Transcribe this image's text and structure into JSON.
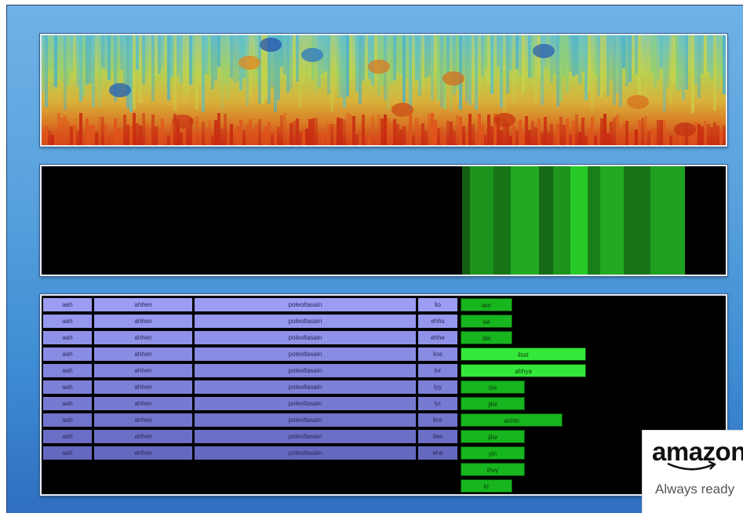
{
  "decoder": {
    "rows": [
      {
        "c1": "aah",
        "c2": "ahhen",
        "c3": "poleoltasain",
        "c4": "lio",
        "bar_label": "iwn",
        "bar_level": 0.41,
        "shade": "#9b9cf2"
      },
      {
        "c1": "aah",
        "c2": "ahhen",
        "c3": "poleoltasain",
        "c4": "ehhs",
        "bar_label": "iwi",
        "bar_level": 0.41,
        "shade": "#9697ee"
      },
      {
        "c1": "aah",
        "c2": "ahhen",
        "c3": "poleoltasain",
        "c4": "ehhe",
        "bar_label": "dei",
        "bar_level": 0.41,
        "shade": "#9092e9"
      },
      {
        "c1": "aah",
        "c2": "ahhen",
        "c3": "poleoltasain",
        "c4": "lios",
        "bar_label": "ilsst",
        "bar_level": 1.0,
        "shade": "#8a8ce4",
        "bright": true
      },
      {
        "c1": "aah",
        "c2": "ahhen",
        "c3": "poleoltasain",
        "c4": "lvr",
        "bar_label": "ahhya",
        "bar_level": 1.0,
        "shade": "#8486de",
        "bright": true
      },
      {
        "c1": "aah",
        "c2": "ahhen",
        "c3": "poleoltasain",
        "c4": "tyy",
        "bar_label": "tiie",
        "bar_level": 0.51,
        "shade": "#7e80d8"
      },
      {
        "c1": "aah",
        "c2": "ahhen",
        "c3": "poleoltasain",
        "c4": "lyr",
        "bar_label": "jilie",
        "bar_level": 0.51,
        "shade": "#787ad2"
      },
      {
        "c1": "aah",
        "c2": "ahhen",
        "c3": "poleoltasain",
        "c4": "lice",
        "bar_label": "ahhlo",
        "bar_level": 0.81,
        "shade": "#7274cc"
      },
      {
        "c1": "aah",
        "c2": "ahhen",
        "c3": "poleoltasain",
        "c4": "ilee",
        "bar_label": "jilie",
        "bar_level": 0.51,
        "shade": "#6c6ec6"
      },
      {
        "c1": "aah",
        "c2": "ahhen",
        "c3": "poleoltasain",
        "c4": "ehe",
        "bar_label": "yin",
        "bar_level": 0.51,
        "shade": "#6668c0"
      }
    ],
    "extra_bars": [
      {
        "bar_label": "ihvy",
        "bar_level": 0.51
      },
      {
        "bar_label": "lrr",
        "bar_level": 0.41
      }
    ]
  },
  "badge": {
    "logo": "amazon",
    "tagline": "Always ready"
  },
  "colors": {
    "bar_green": "#17b51e",
    "bar_green_bright": "#33e83a",
    "energy_green": "#2ad42a"
  }
}
